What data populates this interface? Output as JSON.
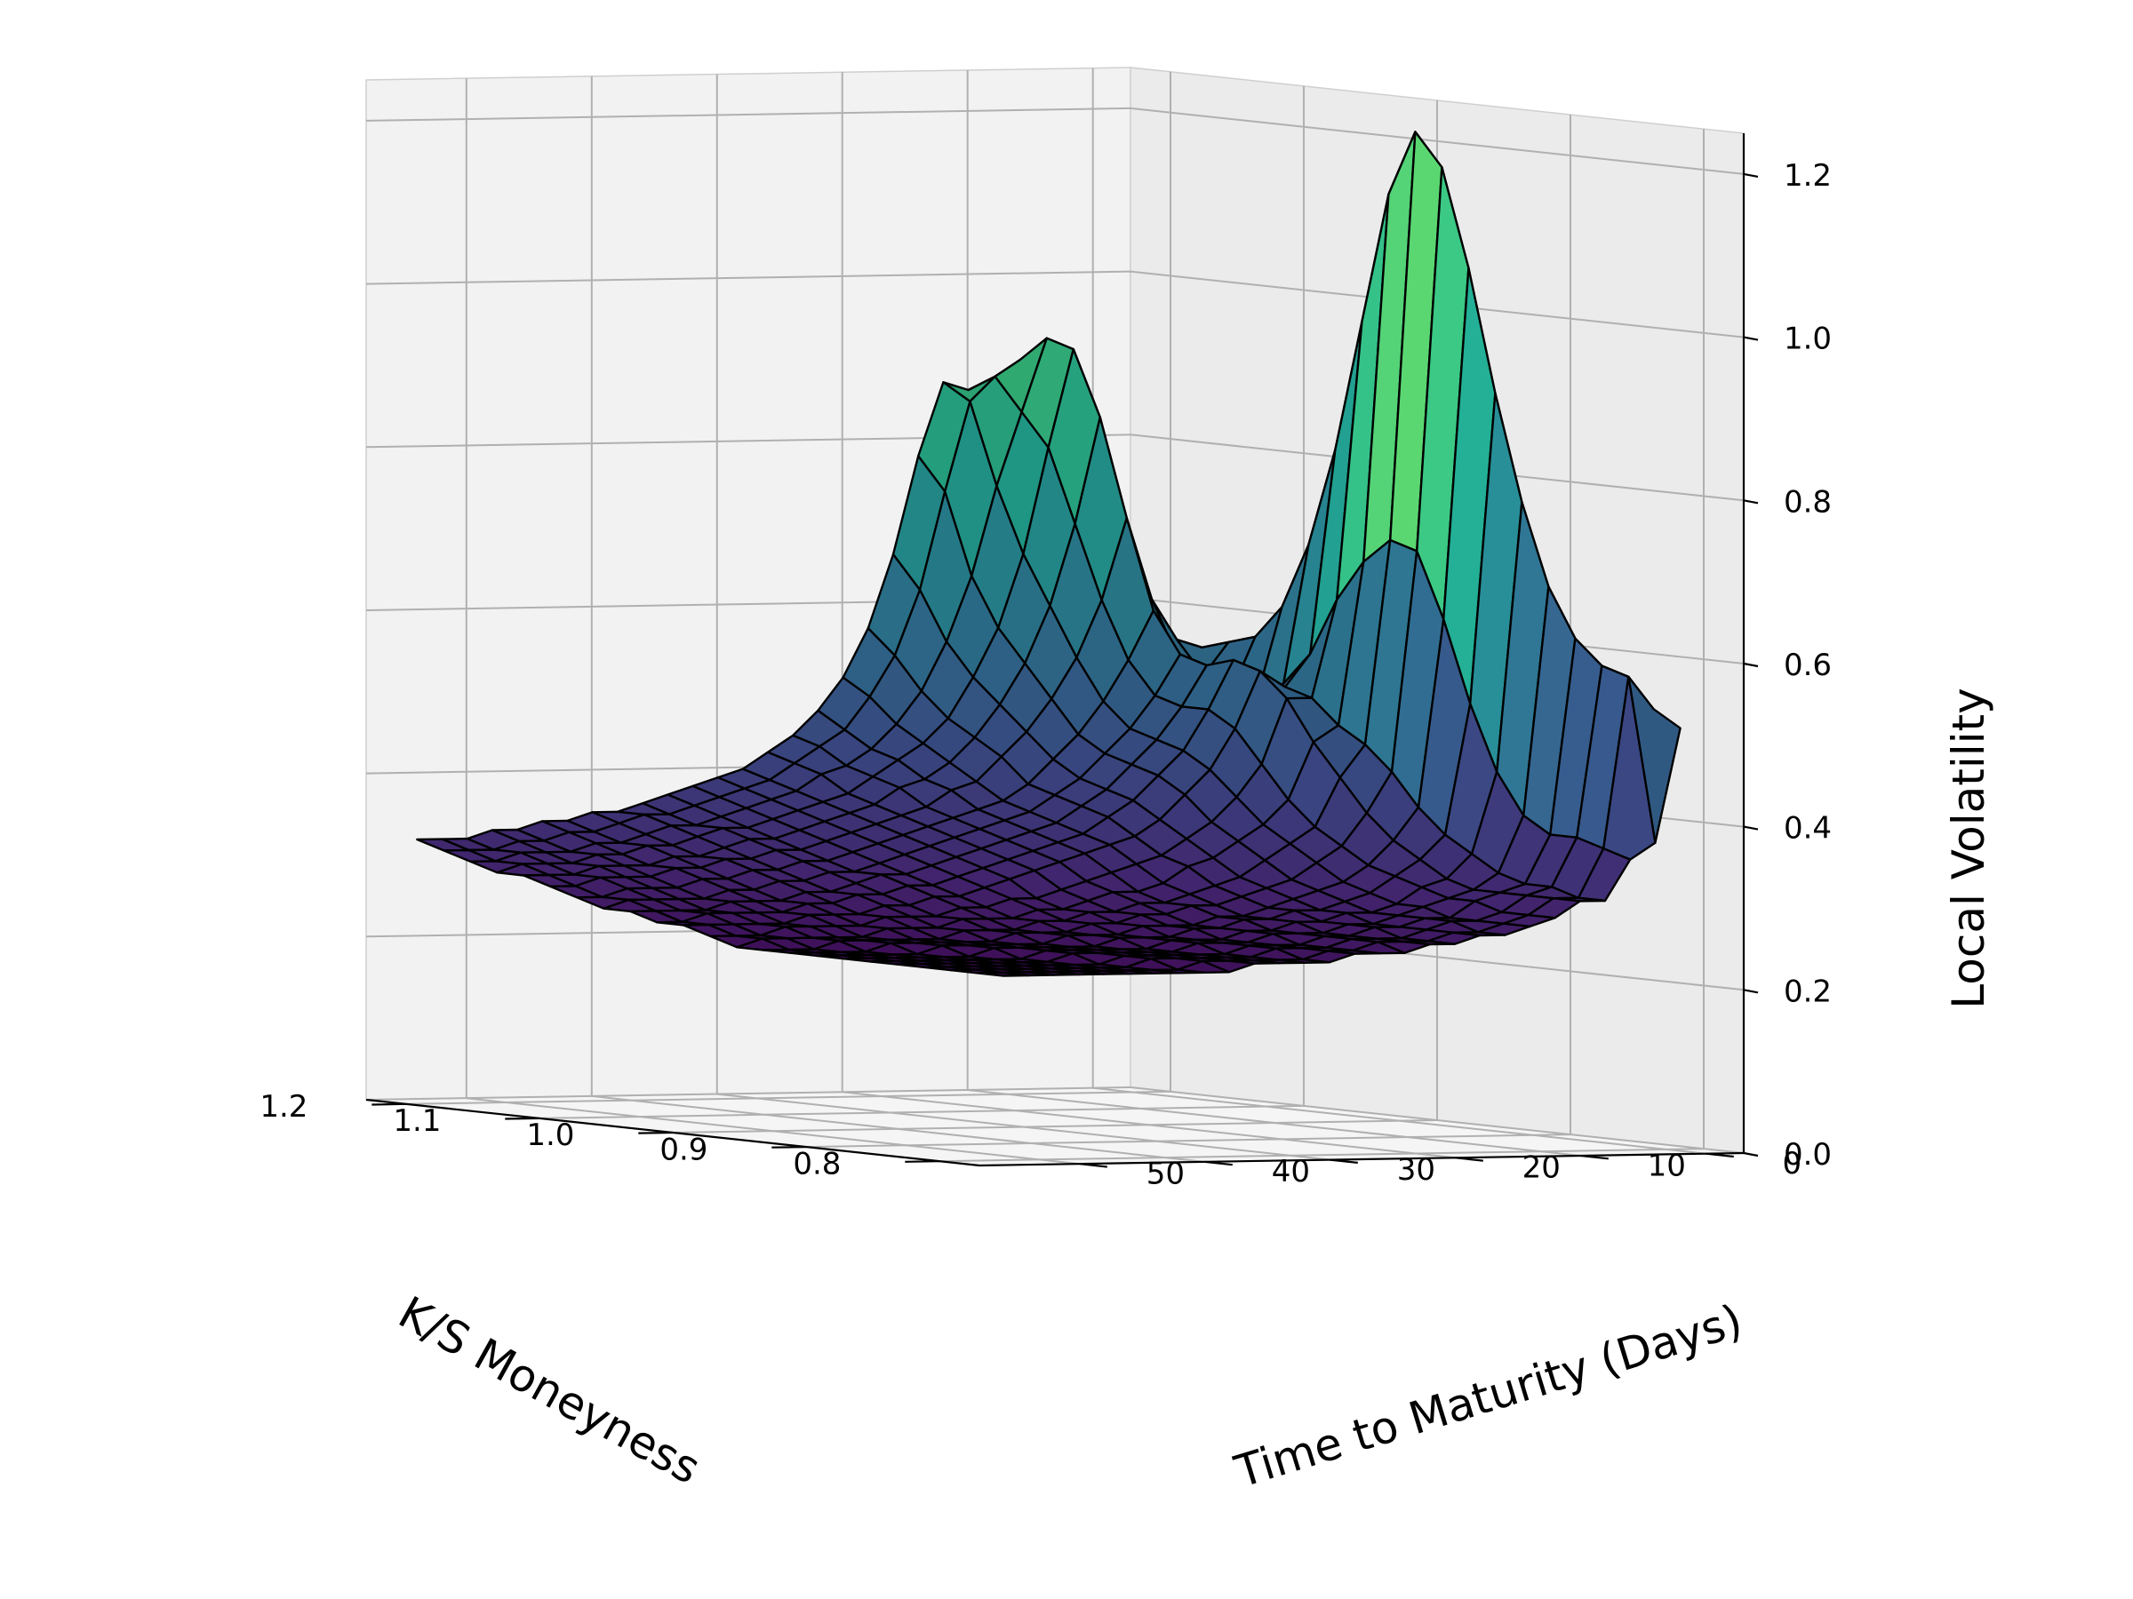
{
  "chart_data": {
    "type": "surface3d",
    "title": "",
    "xlabel": "K/S Moneyness",
    "ylabel": "Time to Maturity (Days)",
    "zlabel": "Local Volatility",
    "xlim": [
      0.77,
      1.23
    ],
    "ylim": [
      -3,
      58
    ],
    "zlim": [
      0,
      1.25
    ],
    "x_ticks": [
      "0.8",
      "0.9",
      "1.0",
      "1.1",
      "1.2"
    ],
    "y_ticks": [
      "0",
      "10",
      "20",
      "30",
      "40",
      "50"
    ],
    "z_ticks": [
      "0.0",
      "0.2",
      "0.4",
      "0.6",
      "0.8",
      "1.0",
      "1.2"
    ],
    "grid": true,
    "colormap": "viridis",
    "colormap_range": [
      0.18,
      1.25
    ],
    "edge_color": "#000000",
    "moneyness_grid": [
      0.78,
      0.8,
      0.82,
      0.84,
      0.86,
      0.88,
      0.9,
      0.92,
      0.94,
      0.96,
      0.98,
      1.0,
      1.02,
      1.04,
      1.06,
      1.08,
      1.1,
      1.12,
      1.14,
      1.16,
      1.18,
      1.2,
      1.22
    ],
    "maturity_grid": [
      1,
      3,
      5,
      7,
      9,
      11,
      13,
      15,
      17,
      19,
      21,
      23,
      25,
      27,
      29,
      31,
      33,
      35,
      37,
      39,
      41,
      43,
      45,
      47,
      49,
      51,
      53,
      55
    ],
    "local_volatility": [
      [
        0.52,
        0.38,
        0.36,
        0.31,
        0.31,
        0.29,
        0.28,
        0.27,
        0.27,
        0.26,
        0.26,
        0.25,
        0.25,
        0.25,
        0.24,
        0.24,
        0.24,
        0.24,
        0.23,
        0.23,
        0.23,
        0.23,
        0.23,
        0.23,
        0.23,
        0.23,
        0.23,
        0.23
      ],
      [
        0.54,
        0.58,
        0.37,
        0.31,
        0.31,
        0.29,
        0.28,
        0.27,
        0.27,
        0.26,
        0.26,
        0.26,
        0.25,
        0.25,
        0.24,
        0.24,
        0.24,
        0.24,
        0.24,
        0.23,
        0.23,
        0.23,
        0.23,
        0.23,
        0.23,
        0.23,
        0.23,
        0.23
      ],
      [
        0.56,
        0.59,
        0.38,
        0.32,
        0.31,
        0.29,
        0.28,
        0.28,
        0.27,
        0.26,
        0.26,
        0.26,
        0.25,
        0.25,
        0.25,
        0.24,
        0.24,
        0.24,
        0.24,
        0.24,
        0.23,
        0.23,
        0.23,
        0.23,
        0.23,
        0.23,
        0.23,
        0.23
      ],
      [
        0.57,
        0.62,
        0.38,
        0.32,
        0.31,
        0.3,
        0.28,
        0.28,
        0.27,
        0.27,
        0.26,
        0.26,
        0.25,
        0.25,
        0.25,
        0.24,
        0.24,
        0.24,
        0.24,
        0.24,
        0.23,
        0.23,
        0.23,
        0.23,
        0.23,
        0.23,
        0.23,
        0.23
      ],
      [
        0.58,
        0.68,
        0.4,
        0.33,
        0.31,
        0.3,
        0.29,
        0.28,
        0.27,
        0.27,
        0.26,
        0.26,
        0.26,
        0.25,
        0.25,
        0.25,
        0.24,
        0.24,
        0.24,
        0.24,
        0.24,
        0.23,
        0.23,
        0.23,
        0.23,
        0.23,
        0.23,
        0.23
      ],
      [
        0.6,
        0.78,
        0.45,
        0.35,
        0.32,
        0.31,
        0.29,
        0.28,
        0.28,
        0.27,
        0.27,
        0.26,
        0.26,
        0.25,
        0.25,
        0.25,
        0.24,
        0.24,
        0.24,
        0.24,
        0.24,
        0.23,
        0.23,
        0.23,
        0.23,
        0.23,
        0.23,
        0.23
      ],
      [
        0.62,
        0.91,
        0.53,
        0.37,
        0.34,
        0.32,
        0.3,
        0.29,
        0.28,
        0.28,
        0.27,
        0.27,
        0.26,
        0.26,
        0.25,
        0.25,
        0.25,
        0.24,
        0.24,
        0.24,
        0.24,
        0.24,
        0.23,
        0.23,
        0.23,
        0.23,
        0.23,
        0.23
      ],
      [
        0.62,
        1.06,
        0.63,
        0.4,
        0.36,
        0.33,
        0.31,
        0.3,
        0.29,
        0.28,
        0.27,
        0.27,
        0.26,
        0.26,
        0.26,
        0.25,
        0.25,
        0.25,
        0.24,
        0.24,
        0.24,
        0.24,
        0.24,
        0.23,
        0.23,
        0.23,
        0.23,
        0.23
      ],
      [
        0.63,
        1.18,
        0.71,
        0.44,
        0.39,
        0.35,
        0.33,
        0.31,
        0.3,
        0.29,
        0.28,
        0.28,
        0.27,
        0.27,
        0.26,
        0.26,
        0.25,
        0.25,
        0.25,
        0.24,
        0.24,
        0.24,
        0.24,
        0.24,
        0.23,
        0.23,
        0.23,
        0.23
      ],
      [
        0.63,
        1.22,
        0.72,
        0.47,
        0.43,
        0.37,
        0.35,
        0.33,
        0.31,
        0.3,
        0.29,
        0.28,
        0.28,
        0.27,
        0.27,
        0.26,
        0.26,
        0.25,
        0.25,
        0.25,
        0.24,
        0.24,
        0.24,
        0.24,
        0.24,
        0.23,
        0.23,
        0.23
      ],
      [
        0.62,
        1.14,
        0.69,
        0.49,
        0.47,
        0.4,
        0.37,
        0.35,
        0.33,
        0.32,
        0.3,
        0.29,
        0.29,
        0.28,
        0.27,
        0.27,
        0.26,
        0.26,
        0.26,
        0.25,
        0.25,
        0.25,
        0.24,
        0.24,
        0.24,
        0.24,
        0.24,
        0.23
      ],
      [
        0.61,
        0.98,
        0.64,
        0.52,
        0.52,
        0.44,
        0.4,
        0.37,
        0.35,
        0.33,
        0.32,
        0.31,
        0.3,
        0.29,
        0.28,
        0.28,
        0.27,
        0.27,
        0.26,
        0.26,
        0.26,
        0.25,
        0.25,
        0.25,
        0.25,
        0.24,
        0.24,
        0.24
      ],
      [
        0.59,
        0.82,
        0.57,
        0.53,
        0.55,
        0.48,
        0.43,
        0.4,
        0.37,
        0.35,
        0.34,
        0.33,
        0.32,
        0.31,
        0.3,
        0.29,
        0.28,
        0.28,
        0.27,
        0.27,
        0.26,
        0.26,
        0.26,
        0.25,
        0.25,
        0.25,
        0.25,
        0.25
      ],
      [
        0.57,
        0.7,
        0.53,
        0.52,
        0.56,
        0.5,
        0.45,
        0.42,
        0.39,
        0.37,
        0.35,
        0.34,
        0.33,
        0.32,
        0.31,
        0.3,
        0.29,
        0.29,
        0.28,
        0.28,
        0.27,
        0.27,
        0.26,
        0.26,
        0.26,
        0.26,
        0.25,
        0.25
      ],
      [
        0.55,
        0.62,
        0.51,
        0.51,
        0.55,
        0.5,
        0.46,
        0.43,
        0.4,
        0.38,
        0.36,
        0.35,
        0.34,
        0.33,
        0.32,
        0.31,
        0.3,
        0.3,
        0.29,
        0.28,
        0.28,
        0.27,
        0.27,
        0.27,
        0.26,
        0.26,
        0.26,
        0.26
      ],
      [
        0.53,
        0.58,
        0.51,
        0.52,
        0.56,
        0.51,
        0.47,
        0.44,
        0.41,
        0.39,
        0.37,
        0.36,
        0.35,
        0.34,
        0.33,
        0.32,
        0.31,
        0.3,
        0.3,
        0.29,
        0.29,
        0.28,
        0.28,
        0.27,
        0.27,
        0.27,
        0.27,
        0.26
      ],
      [
        0.52,
        0.57,
        0.53,
        0.55,
        0.61,
        0.55,
        0.5,
        0.46,
        0.43,
        0.4,
        0.38,
        0.37,
        0.36,
        0.35,
        0.34,
        0.33,
        0.32,
        0.31,
        0.31,
        0.3,
        0.3,
        0.29,
        0.29,
        0.28,
        0.28,
        0.28,
        0.27,
        0.27
      ],
      [
        0.5,
        0.56,
        0.57,
        0.62,
        0.72,
        0.62,
        0.55,
        0.5,
        0.46,
        0.43,
        0.4,
        0.39,
        0.37,
        0.36,
        0.35,
        0.34,
        0.33,
        0.32,
        0.32,
        0.31,
        0.31,
        0.3,
        0.3,
        0.29,
        0.29,
        0.29,
        0.28,
        0.28
      ],
      [
        0.49,
        0.55,
        0.61,
        0.71,
        0.84,
        0.71,
        0.61,
        0.54,
        0.49,
        0.45,
        0.42,
        0.4,
        0.39,
        0.37,
        0.36,
        0.35,
        0.34,
        0.33,
        0.33,
        0.32,
        0.31,
        0.31,
        0.3,
        0.3,
        0.3,
        0.29,
        0.29,
        0.29
      ],
      [
        0.48,
        0.54,
        0.63,
        0.77,
        0.92,
        0.8,
        0.67,
        0.58,
        0.52,
        0.47,
        0.44,
        0.42,
        0.4,
        0.38,
        0.37,
        0.36,
        0.35,
        0.34,
        0.34,
        0.33,
        0.32,
        0.32,
        0.31,
        0.31,
        0.3,
        0.3,
        0.3,
        0.29
      ],
      [
        0.47,
        0.53,
        0.62,
        0.76,
        0.93,
        0.84,
        0.75,
        0.64,
        0.56,
        0.5,
        0.46,
        0.43,
        0.41,
        0.4,
        0.38,
        0.37,
        0.36,
        0.35,
        0.34,
        0.34,
        0.33,
        0.32,
        0.32,
        0.31,
        0.31,
        0.31,
        0.3,
        0.3
      ],
      [
        0.46,
        0.52,
        0.6,
        0.73,
        0.9,
        0.88,
        0.85,
        0.74,
        0.62,
        0.54,
        0.49,
        0.45,
        0.43,
        0.41,
        0.39,
        0.38,
        0.37,
        0.36,
        0.35,
        0.35,
        0.34,
        0.33,
        0.33,
        0.32,
        0.32,
        0.31,
        0.31,
        0.31
      ],
      [
        0.46,
        0.51,
        0.58,
        0.69,
        0.84,
        0.86,
        0.87,
        0.78,
        0.66,
        0.57,
        0.51,
        0.47,
        0.44,
        0.42,
        0.4,
        0.39,
        0.38,
        0.37,
        0.36,
        0.35,
        0.35,
        0.34,
        0.34,
        0.33,
        0.33,
        0.32,
        0.32,
        0.32
      ]
    ]
  }
}
